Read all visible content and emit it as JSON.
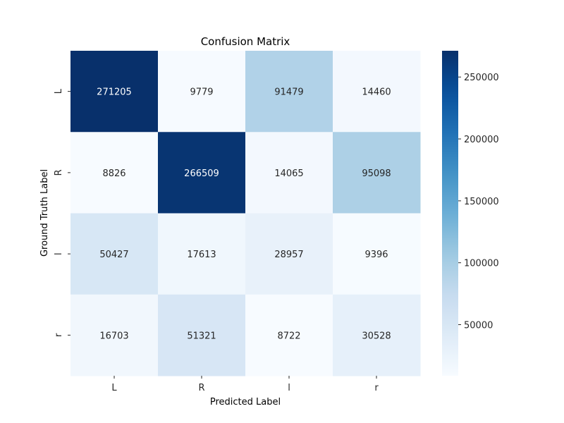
{
  "chart_data": {
    "type": "heatmap",
    "title": "Confusion Matrix",
    "xlabel": "Predicted Label",
    "ylabel": "Ground Truth Label",
    "x_categories": [
      "L",
      "R",
      "l",
      "r"
    ],
    "y_categories": [
      "L",
      "R",
      "l",
      "r"
    ],
    "values": [
      [
        271205,
        9779,
        91479,
        14460
      ],
      [
        8826,
        266509,
        14065,
        95098
      ],
      [
        50427,
        17613,
        28957,
        9396
      ],
      [
        16703,
        51321,
        8722,
        30528
      ]
    ],
    "colormap": "Blues",
    "color_range": [
      8722,
      271205
    ],
    "colorbar_ticks": [
      50000,
      100000,
      150000,
      200000,
      250000
    ],
    "colorbar_tick_labels": [
      "50000",
      "100000",
      "150000",
      "200000",
      "250000"
    ]
  }
}
